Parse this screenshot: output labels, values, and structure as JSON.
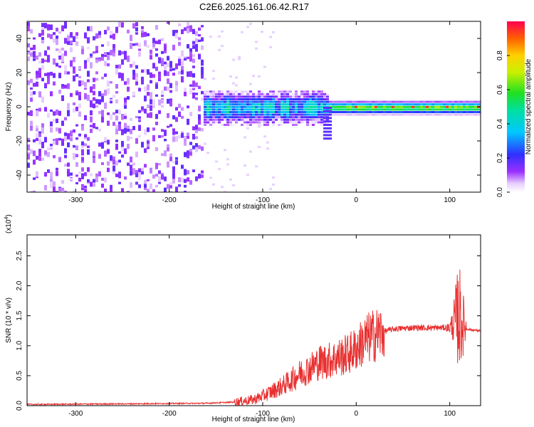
{
  "chart_data": [
    {
      "type": "heatmap",
      "title": "C2E6.2025.161.06.42.R17",
      "xlabel": "Height of straight line (km)",
      "ylabel": "Frequency (Hz)",
      "xlim": [
        -352,
        133
      ],
      "ylim": [
        -50,
        50
      ],
      "x_ticks": [
        -300,
        -200,
        -100,
        0,
        100
      ],
      "y_ticks": [
        -40,
        -20,
        0,
        20,
        40
      ],
      "colorbar": {
        "label": "Normalized spectral amplitude",
        "range": [
          0,
          1
        ],
        "ticks": [
          "0.0",
          "0.2",
          "0.4",
          "0.6",
          "0.8"
        ],
        "colormap": "rainbow (white-violet-blue-cyan-green-yellow-red)"
      },
      "features": {
        "noise_region_x": [
          -352,
          -165
        ],
        "line_center_hz": 0,
        "line_peak_region_x": [
          -30,
          120
        ],
        "dip_near_x": -33,
        "dip_min_hz": -20
      }
    },
    {
      "type": "line",
      "xlabel": "Height of straight line (km)",
      "ylabel": "SNR (10 * v/v)",
      "y_scale_label": "(x10",
      "y_scale_exp": "4",
      "y_scale_close": ")",
      "xlim": [
        -352,
        133
      ],
      "ylim": [
        0,
        2.85
      ],
      "x_ticks": [
        -300,
        -200,
        -100,
        0,
        100
      ],
      "y_ticks": [
        "0.0",
        "0.5",
        "1.0",
        "1.5",
        "2.0",
        "2.5"
      ],
      "color": "#e83030",
      "x": [
        -352,
        -250,
        -160,
        -130,
        -110,
        -100,
        -90,
        -80,
        -70,
        -60,
        -50,
        -40,
        -30,
        -20,
        -10,
        0,
        10,
        20,
        30,
        40,
        50,
        60,
        70,
        80,
        90,
        100,
        105,
        110,
        113,
        118,
        125,
        133
      ],
      "y": [
        0.02,
        0.03,
        0.04,
        0.06,
        0.1,
        0.16,
        0.24,
        0.32,
        0.42,
        0.54,
        0.62,
        0.72,
        0.75,
        0.8,
        0.85,
        0.95,
        1.1,
        1.18,
        1.24,
        1.28,
        1.29,
        1.3,
        1.3,
        1.3,
        1.3,
        1.3,
        1.4,
        1.5,
        1.4,
        1.28,
        1.26,
        1.25
      ]
    }
  ]
}
